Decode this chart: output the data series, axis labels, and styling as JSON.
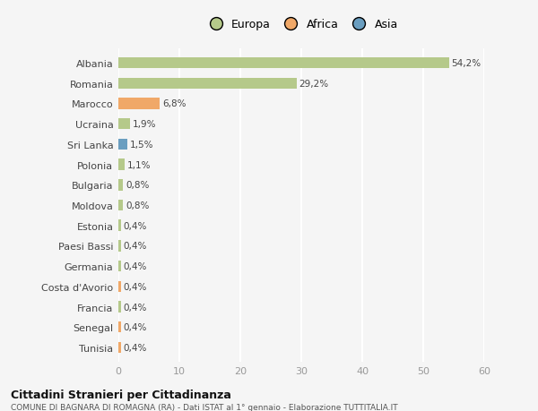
{
  "countries": [
    "Albania",
    "Romania",
    "Marocco",
    "Ucraina",
    "Sri Lanka",
    "Polonia",
    "Bulgaria",
    "Moldova",
    "Estonia",
    "Paesi Bassi",
    "Germania",
    "Costa d'Avorio",
    "Francia",
    "Senegal",
    "Tunisia"
  ],
  "values": [
    54.2,
    29.2,
    6.8,
    1.9,
    1.5,
    1.1,
    0.8,
    0.8,
    0.4,
    0.4,
    0.4,
    0.4,
    0.4,
    0.4,
    0.4
  ],
  "labels": [
    "54,2%",
    "29,2%",
    "6,8%",
    "1,9%",
    "1,5%",
    "1,1%",
    "0,8%",
    "0,8%",
    "0,4%",
    "0,4%",
    "0,4%",
    "0,4%",
    "0,4%",
    "0,4%",
    "0,4%"
  ],
  "continents": [
    "Europa",
    "Europa",
    "Africa",
    "Europa",
    "Asia",
    "Europa",
    "Europa",
    "Europa",
    "Europa",
    "Europa",
    "Europa",
    "Africa",
    "Europa",
    "Africa",
    "Africa"
  ],
  "colors": {
    "Europa": "#b5c98a",
    "Africa": "#f0a868",
    "Asia": "#6a9ec0"
  },
  "xlim": [
    0,
    60
  ],
  "title": "Cittadini Stranieri per Cittadinanza",
  "subtitle": "COMUNE DI BAGNARA DI ROMAGNA (RA) - Dati ISTAT al 1° gennaio - Elaborazione TUTTITALIA.IT",
  "bg_color": "#f5f5f5",
  "grid_color": "#ffffff",
  "bar_height": 0.55
}
